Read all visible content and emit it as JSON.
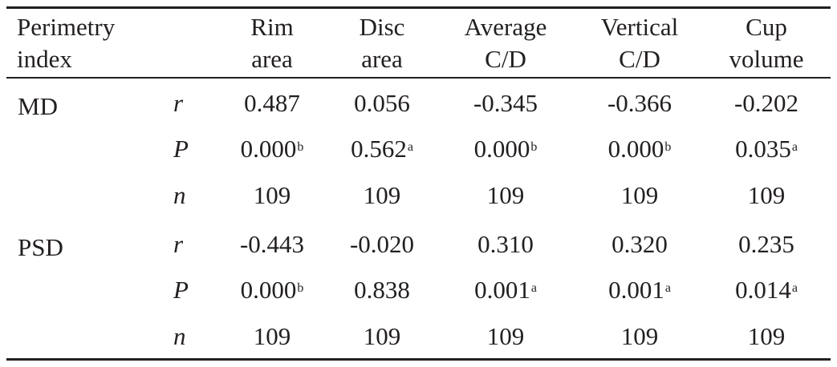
{
  "table": {
    "headers": [
      [
        "Perimetry",
        "index"
      ],
      [
        "",
        ""
      ],
      [
        "Rim",
        "area"
      ],
      [
        "Disc",
        "area"
      ],
      [
        "Average",
        "C/D"
      ],
      [
        "Vertical",
        "C/D"
      ],
      [
        "Cup",
        "volume"
      ]
    ],
    "groups": [
      {
        "label": "MD",
        "rows": [
          {
            "stat": "r",
            "cells": [
              {
                "v": "0.487",
                "s": ""
              },
              {
                "v": "0.056",
                "s": ""
              },
              {
                "v": "-0.345",
                "s": ""
              },
              {
                "v": "-0.366",
                "s": ""
              },
              {
                "v": "-0.202",
                "s": ""
              }
            ]
          },
          {
            "stat": "P",
            "cells": [
              {
                "v": "0.000",
                "s": "b"
              },
              {
                "v": "0.562",
                "s": "a"
              },
              {
                "v": "0.000",
                "s": "b"
              },
              {
                "v": "0.000",
                "s": "b"
              },
              {
                "v": "0.035",
                "s": "a"
              }
            ]
          },
          {
            "stat": "n",
            "cells": [
              {
                "v": "109",
                "s": ""
              },
              {
                "v": "109",
                "s": ""
              },
              {
                "v": "109",
                "s": ""
              },
              {
                "v": "109",
                "s": ""
              },
              {
                "v": "109",
                "s": ""
              }
            ]
          }
        ]
      },
      {
        "label": "PSD",
        "rows": [
          {
            "stat": "r",
            "cells": [
              {
                "v": "-0.443",
                "s": ""
              },
              {
                "v": "-0.020",
                "s": ""
              },
              {
                "v": "0.310",
                "s": ""
              },
              {
                "v": "0.320",
                "s": ""
              },
              {
                "v": "0.235",
                "s": ""
              }
            ]
          },
          {
            "stat": "P",
            "cells": [
              {
                "v": "0.000",
                "s": "b"
              },
              {
                "v": "0.838",
                "s": ""
              },
              {
                "v": "0.001",
                "s": "a"
              },
              {
                "v": "0.001",
                "s": "a"
              },
              {
                "v": "0.014",
                "s": "a"
              }
            ]
          },
          {
            "stat": "n",
            "cells": [
              {
                "v": "109",
                "s": ""
              },
              {
                "v": "109",
                "s": ""
              },
              {
                "v": "109",
                "s": ""
              },
              {
                "v": "109",
                "s": ""
              },
              {
                "v": "109",
                "s": ""
              }
            ]
          }
        ]
      }
    ]
  }
}
